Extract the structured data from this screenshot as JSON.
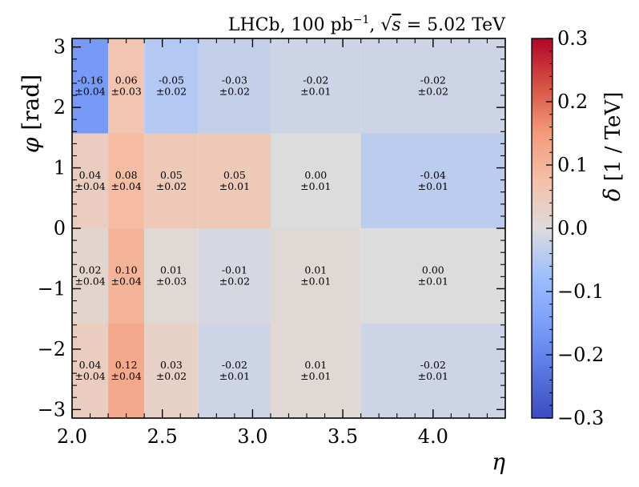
{
  "chart_data": {
    "type": "heatmap",
    "title": "LHCb, 100 pb⁻¹, √s = 5.02 TeV",
    "title_parts": {
      "experiment": "LHCb, 100 pb",
      "lumi_exp": "−1",
      "sep": ", ",
      "sqrt_symbol": "√",
      "s": "s",
      "energy": " = 5.02 TeV"
    },
    "xlabel": "η",
    "ylabel": "φ [rad]",
    "ylabel_parts": {
      "symbol": "φ",
      "unit": " [rad]"
    },
    "colorbar_label": "δ [1 / TeV]",
    "colorbar_label_parts": {
      "symbol": "δ",
      "unit": " [1 / TeV]"
    },
    "xlim": [
      2.0,
      4.4
    ],
    "ylim": [
      -3.1416,
      3.1416
    ],
    "clim": [
      -0.3,
      0.3
    ],
    "colormap": "coolwarm",
    "x_ticks": [
      2.0,
      2.5,
      3.0,
      3.5,
      4.0
    ],
    "x_tick_labels": [
      "2.0",
      "2.5",
      "3.0",
      "3.5",
      "4.0"
    ],
    "y_ticks": [
      3,
      2,
      1,
      0,
      -1,
      -2,
      -3
    ],
    "y_tick_labels": [
      "3",
      "2",
      "1",
      "0",
      "−1",
      "−2",
      "−3"
    ],
    "colorbar_ticks": [
      0.3,
      0.2,
      0.1,
      0.0,
      -0.1,
      -0.2,
      -0.3
    ],
    "colorbar_tick_labels": [
      "0.3",
      "0.2",
      "0.1",
      "0.0",
      "−0.1",
      "−0.2",
      "−0.3"
    ],
    "x_edges": [
      2.0,
      2.2,
      2.4,
      2.7,
      3.1,
      3.6,
      4.4
    ],
    "y_edges": [
      3.1416,
      1.5708,
      0.0,
      -1.5708,
      -3.1416
    ],
    "rows": [
      {
        "values": [
          -0.16,
          0.06,
          -0.05,
          -0.03,
          -0.02,
          -0.02
        ],
        "value_labels": [
          "-0.16",
          "0.06",
          "-0.05",
          "-0.03",
          "-0.02",
          "-0.02"
        ],
        "error_labels": [
          "±0.04",
          "±0.03",
          "±0.02",
          "±0.02",
          "±0.01",
          "±0.02"
        ]
      },
      {
        "values": [
          0.04,
          0.08,
          0.05,
          0.05,
          0.0,
          -0.04
        ],
        "value_labels": [
          "0.04",
          "0.08",
          "0.05",
          "0.05",
          "0.00",
          "-0.04"
        ],
        "error_labels": [
          "±0.04",
          "±0.04",
          "±0.02",
          "±0.01",
          "±0.01",
          "±0.01"
        ]
      },
      {
        "values": [
          0.02,
          0.1,
          0.01,
          -0.01,
          0.01,
          0.0
        ],
        "value_labels": [
          "0.02",
          "0.10",
          "0.01",
          "-0.01",
          "0.01",
          "0.00"
        ],
        "error_labels": [
          "±0.04",
          "±0.04",
          "±0.03",
          "±0.02",
          "±0.01",
          "±0.01"
        ]
      },
      {
        "values": [
          0.04,
          0.12,
          0.03,
          -0.02,
          0.01,
          -0.02
        ],
        "value_labels": [
          "0.04",
          "0.12",
          "0.03",
          "-0.02",
          "0.01",
          "-0.02"
        ],
        "error_labels": [
          "±0.04",
          "±0.04",
          "±0.02",
          "±0.01",
          "±0.01",
          "±0.01"
        ]
      }
    ]
  }
}
